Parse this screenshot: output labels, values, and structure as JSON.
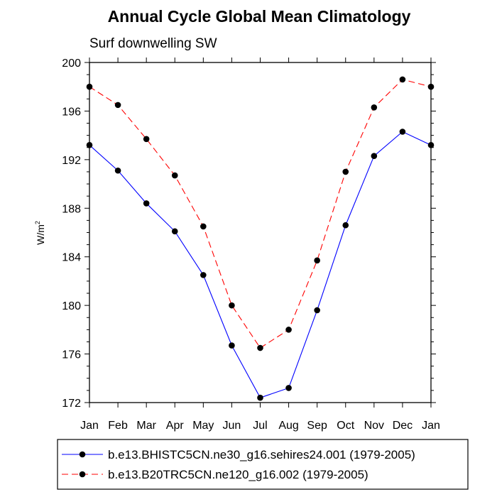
{
  "chart_data": {
    "type": "line",
    "title": "Annual Cycle Global Mean Climatology",
    "subtitle": "Surf downwelling SW",
    "xlabel": "",
    "ylabel": "W/m",
    "ylabel_superscript": "2",
    "categories": [
      "Jan",
      "Feb",
      "Mar",
      "Apr",
      "May",
      "Jun",
      "Jul",
      "Aug",
      "Sep",
      "Oct",
      "Nov",
      "Dec",
      "Jan"
    ],
    "ylim": [
      172,
      200
    ],
    "yticks": [
      172,
      176,
      180,
      184,
      188,
      192,
      196,
      200
    ],
    "grid": false,
    "legend_position": "bottom",
    "series": [
      {
        "name": "b.e13.BHISTC5CN.ne30_g16.sehires24.001 (1979-2005)",
        "color": "#0000ff",
        "dash": "solid",
        "marker": "filled-circle",
        "values": [
          193.2,
          191.1,
          188.4,
          186.1,
          182.5,
          176.7,
          172.4,
          173.2,
          179.6,
          186.6,
          192.3,
          194.3,
          193.2
        ]
      },
      {
        "name": "b.e13.B20TRC5CN.ne120_g16.002 (1979-2005)",
        "color": "#ff0000",
        "dash": "dashed",
        "marker": "filled-circle",
        "values": [
          198.0,
          196.5,
          193.7,
          190.7,
          186.5,
          180.0,
          176.5,
          178.0,
          183.7,
          191.0,
          196.3,
          198.6,
          198.0
        ]
      }
    ]
  }
}
